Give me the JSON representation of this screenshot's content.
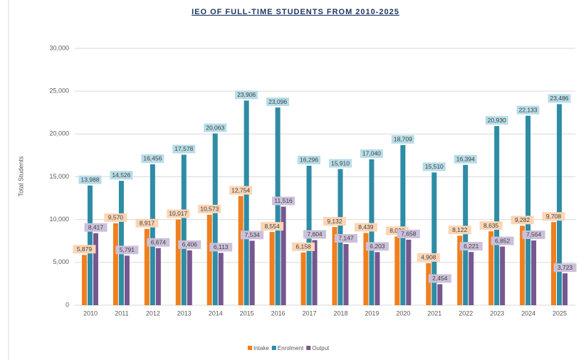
{
  "chart_data": {
    "type": "bar",
    "title": "IEO OF FULL-TIME STUDENTS FROM 2010-2025",
    "y_label": "Total Students",
    "categories": [
      "2010",
      "2011",
      "2012",
      "2013",
      "2014",
      "2015",
      "2016",
      "2017",
      "2018",
      "2019",
      "2020",
      "2021",
      "2022",
      "2023",
      "2024",
      "2025"
    ],
    "series": [
      {
        "name": "Intake",
        "color": "#f07f1e",
        "label_color": "#fbd5b5",
        "values": [
          5879,
          9570,
          8917,
          10017,
          10573,
          12754,
          8554,
          6158,
          9132,
          8439,
          8036,
          4908,
          8122,
          8635,
          9282,
          9708
        ],
        "value_labels": [
          "5,879",
          "9,570",
          "8,917",
          "10,017",
          "10,573",
          "12,754",
          "8,554",
          "6,158",
          "9,132",
          "8,439",
          "8,036",
          "4,908",
          "8,122",
          "8,635",
          "9,282",
          "9,708"
        ]
      },
      {
        "name": "Enrolment",
        "color": "#2e8ca5",
        "label_color": "#b7dde8",
        "values": [
          13988,
          14526,
          16456,
          17578,
          20063,
          23906,
          23096,
          16296,
          15910,
          17040,
          18709,
          15510,
          16394,
          20930,
          22133,
          23486
        ],
        "value_labels": [
          "13,988",
          "14,526",
          "16,456",
          "17,578",
          "20,063",
          "23,906",
          "23,096",
          "16,296",
          "15,910",
          "17,040",
          "18,709",
          "15,510",
          "16,394",
          "20,930",
          "22,133",
          "23,486"
        ]
      },
      {
        "name": "Output",
        "color": "#76578f",
        "label_color": "#ccc0da",
        "values": [
          8417,
          5791,
          6674,
          6406,
          6113,
          7534,
          11516,
          7604,
          7147,
          6203,
          7658,
          2454,
          6221,
          6852,
          7564,
          3723
        ],
        "value_labels": [
          "8,417",
          "5,791",
          "6,674",
          "6,406",
          "6,113",
          "7,534",
          "11,516",
          "7,604",
          "7,147",
          "6,203",
          "7,658",
          "2,454",
          "6,221",
          "6,852",
          "7,564",
          "3,723"
        ]
      }
    ],
    "ylim": [
      0,
      30000
    ],
    "yticks": [
      0,
      {
        "value": 5000,
        "label": "5,000"
      },
      {
        "value": 10000,
        "label": "10,000"
      },
      {
        "value": 15000,
        "label": "15,000"
      },
      {
        "value": 20000,
        "label": "20,000"
      },
      {
        "value": 25000,
        "label": "25,000"
      },
      {
        "value": 30000,
        "label": "30,000"
      }
    ],
    "grid": true,
    "legend": "bottom"
  }
}
